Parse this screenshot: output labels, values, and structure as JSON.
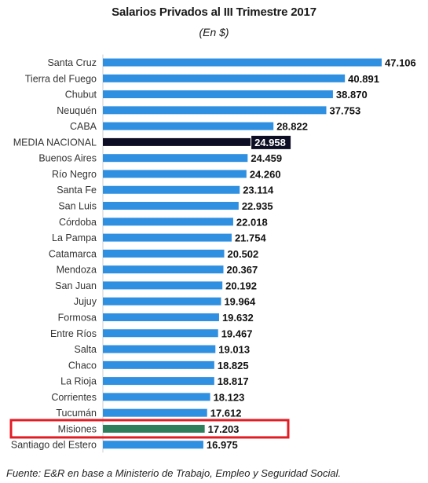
{
  "chart_data": {
    "type": "bar",
    "orientation": "horizontal",
    "title": "Salarios Privados al III Trimestre 2017",
    "subtitle": "(En $)",
    "categories": [
      "Santa Cruz",
      "Tierra del Fuego",
      "Chubut",
      "Neuquén",
      "CABA",
      "MEDIA NACIONAL",
      "Buenos Aires",
      "Río Negro",
      "Santa Fe",
      "San Luis",
      "Córdoba",
      "La Pampa",
      "Catamarca",
      "Mendoza",
      "San Juan",
      "Jujuy",
      "Formosa",
      "Entre Ríos",
      "Salta",
      "Chaco",
      "La Rioja",
      "Corrientes",
      "Tucumán",
      "Misiones",
      "Santiago del Estero"
    ],
    "values": [
      47106,
      40891,
      38870,
      37753,
      28822,
      24958,
      24459,
      24260,
      23114,
      22935,
      22018,
      21754,
      20502,
      20367,
      20192,
      19964,
      19632,
      19467,
      19013,
      18825,
      18817,
      18123,
      17612,
      17203,
      16975
    ],
    "value_labels": [
      "47.106",
      "40.891",
      "38.870",
      "37.753",
      "28.822",
      "24.958",
      "24.459",
      "24.260",
      "23.114",
      "22.935",
      "22.018",
      "21.754",
      "20.502",
      "20.367",
      "20.192",
      "19.964",
      "19.632",
      "19.467",
      "19.013",
      "18.825",
      "18.817",
      "18.123",
      "17.612",
      "17.203",
      "16.975"
    ],
    "highlight": {
      "MEDIA NACIONAL": "#0d0d26",
      "Misiones": "#2e7d5b"
    },
    "highlight_box": "Misiones",
    "highlight_box_color": "#e31b23",
    "bar_color": "#2f8fe0",
    "xlim": [
      0,
      50000
    ],
    "grid": false,
    "legend": "none"
  },
  "source": "Fuente: E&R en base a Ministerio de Trabajo, Empleo y Seguridad Social."
}
